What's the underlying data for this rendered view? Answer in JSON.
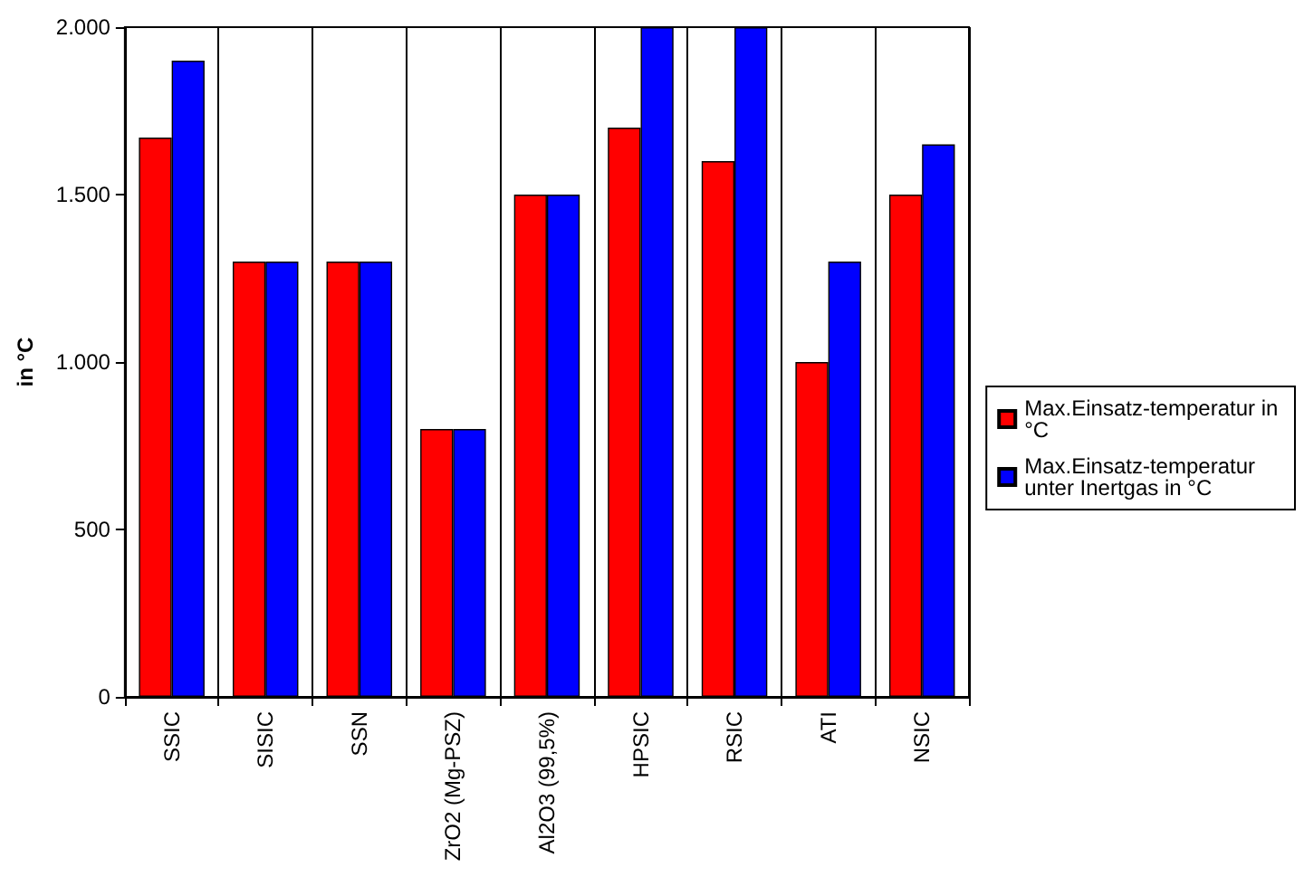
{
  "chart_data": {
    "type": "bar",
    "ylabel": "in °C",
    "categories": [
      "SSIC",
      "SISIC",
      "SSN",
      "ZrO2 (Mg-PSZ)",
      "Al2O3 (99,5%)",
      "HPSIC",
      "RSIC",
      "ATI",
      "NSIC"
    ],
    "series": [
      {
        "name": "Max.Einsatz-temperatur in °C",
        "color": "#ff0000",
        "values": [
          1670,
          1300,
          1300,
          800,
          1500,
          1700,
          1600,
          1000,
          1500
        ]
      },
      {
        "name": "Max.Einsatz-temperatur unter Inertgas in °C",
        "color": "#0000ff",
        "values": [
          1900,
          1300,
          1300,
          800,
          1500,
          2000,
          2000,
          1300,
          1650
        ]
      }
    ],
    "ylim": [
      0,
      2000
    ],
    "yticks": [
      {
        "value": 0,
        "label": "0"
      },
      {
        "value": 500,
        "label": "500"
      },
      {
        "value": 1000,
        "label": "1.000"
      },
      {
        "value": 1500,
        "label": "1.500"
      },
      {
        "value": 2000,
        "label": "2.000"
      }
    ],
    "grid": "x",
    "legend": "right"
  }
}
